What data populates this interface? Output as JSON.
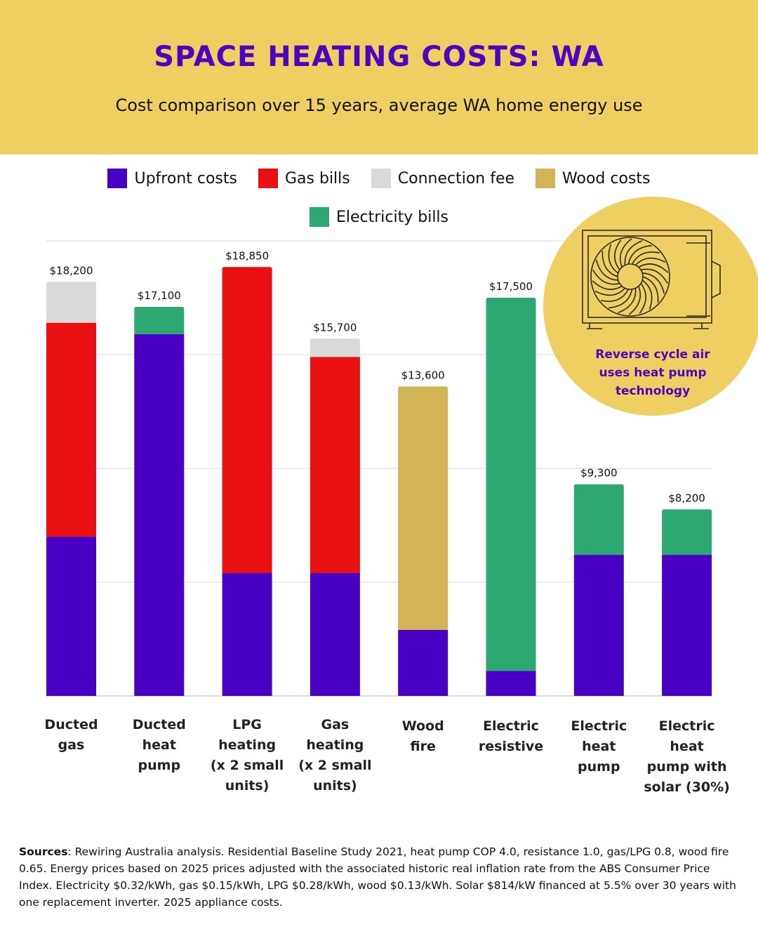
{
  "header": {
    "title": "SPACE HEATING COSTS: WA",
    "subtitle": "Cost comparison over 15 years,  average WA home energy use"
  },
  "legend": [
    {
      "label": "Upfront costs",
      "color": "#4A00C4"
    },
    {
      "label": "Gas bills",
      "color": "#E81010"
    },
    {
      "label": "Connection fee",
      "color": "#D9D9D9"
    },
    {
      "label": "Wood costs",
      "color": "#D2B356"
    },
    {
      "label": "Electricity bills",
      "color": "#2EA872"
    }
  ],
  "callout": {
    "text": "Reverse cycle air uses heat pump technology",
    "icon": "air-conditioner-outdoor-unit-icon"
  },
  "sources": {
    "label": "Sources",
    "text": ": Rewiring Australia analysis. Residential Baseline Study 2021, heat pump COP 4.0, resistance 1.0, gas/LPG 0.8, wood fire 0.65. Energy prices based on 2025 prices adjusted with the associated historic real inflation rate from the ABS Consumer Price Index. Electricity $0.32/kWh, gas $0.15/kWh, LPG $0.28/kWh, wood $0.13/kWh. Solar $814/kW financed at 5.5% over 30 years with one replacement inverter. 2025 appliance costs."
  },
  "chart_data": {
    "type": "bar",
    "stacked": true,
    "title": "SPACE HEATING COSTS: WA",
    "subtitle": "Cost comparison over 15 years,  average WA home energy use",
    "categories": [
      [
        "Ducted",
        "gas"
      ],
      [
        "Ducted",
        "heat",
        "pump"
      ],
      [
        "LPG",
        "heating",
        "(x 2 small",
        "units)"
      ],
      [
        "Gas",
        "heating",
        "(x 2 small",
        "units)"
      ],
      [
        "Wood",
        "fire"
      ],
      [
        "Electric",
        "resistive"
      ],
      [
        "Electric",
        "heat",
        "pump"
      ],
      [
        "Electric",
        "heat",
        "pump with",
        "solar (30%)"
      ]
    ],
    "series": [
      {
        "name": "Upfront costs",
        "color": "#4A00C4",
        "values": [
          7000,
          15900,
          5400,
          5400,
          2900,
          1100,
          6200,
          6200
        ]
      },
      {
        "name": "Gas bills",
        "color": "#E81010",
        "values": [
          9400,
          0,
          13450,
          9500,
          0,
          0,
          0,
          0
        ]
      },
      {
        "name": "Connection fee",
        "color": "#D9D9D9",
        "values": [
          1800,
          0,
          0,
          800,
          0,
          0,
          0,
          0
        ]
      },
      {
        "name": "Wood costs",
        "color": "#D2B356",
        "values": [
          0,
          0,
          0,
          0,
          10700,
          0,
          0,
          0
        ]
      },
      {
        "name": "Electricity bills",
        "color": "#2EA872",
        "values": [
          0,
          1200,
          0,
          0,
          0,
          16400,
          3100,
          2000
        ]
      }
    ],
    "totals": [
      "$18,200",
      "$17,100",
      "$18,850",
      "$15,700",
      "$13,600",
      "$17,500",
      "$9,300",
      "$8,200"
    ],
    "ylim": [
      0,
      20000
    ],
    "grid": true,
    "legend_position": "top"
  }
}
